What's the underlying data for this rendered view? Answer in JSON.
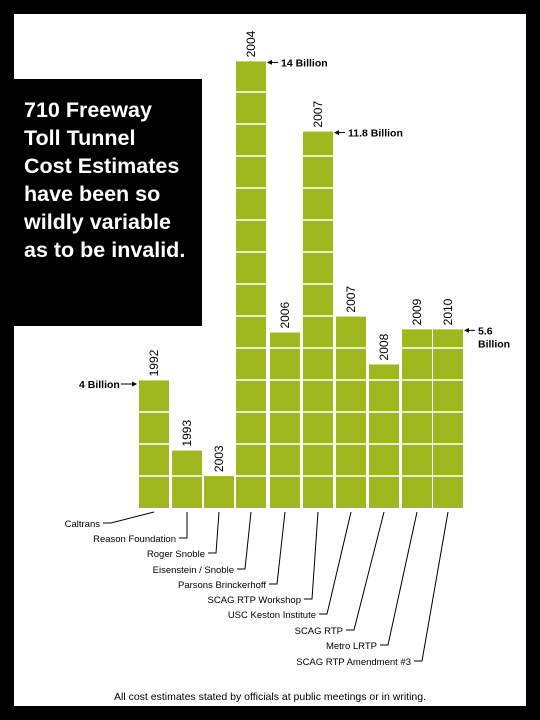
{
  "headline": "710 Freeway\nToll Tunnel\nCost Estimates\nhave been so\nwildly variable\nas to be invalid.",
  "footnote": "All cost estimates stated by officials at public meetings or in writing.",
  "colors": {
    "bar": "#9fb81f",
    "frame": "#000000",
    "background": "#ffffff"
  },
  "chart_data": {
    "type": "bar",
    "units": "Billion",
    "categories": [
      "1992",
      "1993",
      "2003",
      "2004",
      "2006",
      "2007",
      "2007",
      "2008",
      "2009",
      "2010"
    ],
    "values": [
      4,
      1.8,
      1,
      14,
      5.5,
      11.8,
      6,
      4.5,
      5.6,
      5.6
    ],
    "sources": [
      "Caltrans",
      "Reason Foundation",
      "Roger Snoble",
      "Eisenstein  / Snoble",
      "Parsons Brinckerhoff",
      "SCAG RTP Workshop",
      "USC Keston Institute",
      "SCAG RTP",
      "Metro LRTP",
      "SCAG RTP Amendment #3"
    ],
    "annotations": [
      {
        "bar": 0,
        "text": "4 Billion",
        "side": "left"
      },
      {
        "bar": 3,
        "text": "14 Billion",
        "side": "right"
      },
      {
        "bar": 5,
        "text": "11.8 Billion",
        "side": "right"
      },
      {
        "bar": 9,
        "text": "5.6\nBillion",
        "side": "right"
      }
    ]
  }
}
